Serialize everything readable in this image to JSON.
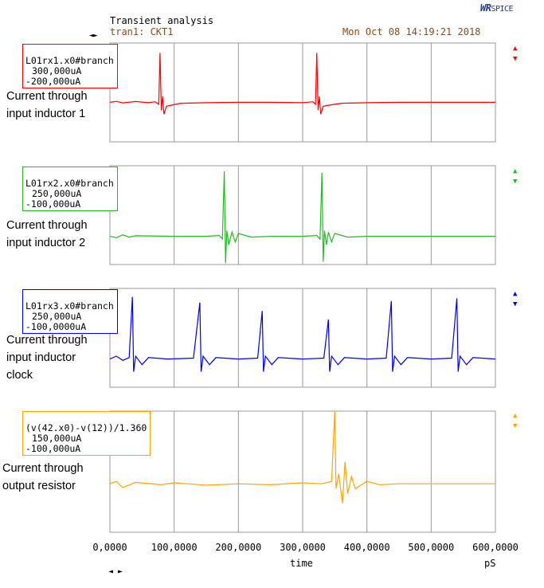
{
  "header": {
    "title": "Transient analysis",
    "subtitle": "tran1: CKT1",
    "datetime": "Mon Oct 08 14:19:21 2018",
    "logo_main": "WR",
    "logo_sub": "SPICE",
    "top_nav": "◄►",
    "bottom_nav": "◄ ►"
  },
  "colors": {
    "grid": "#9a9a9a",
    "panel1": "#ff0000",
    "panel2": "#22bb22",
    "panel3": "#0000ee",
    "panel4": "#ffa500"
  },
  "annotations": [
    "Current through input inductor 1",
    "Current through input inductor 2",
    "Current through input inductor clock",
    "Current through output resistor"
  ],
  "chart_data": {
    "type": "line",
    "xlabel": "time",
    "xunit": "pS",
    "xlim": [
      0,
      600
    ],
    "x_ticks": [
      "0,0000",
      "100,0000",
      "200,0000",
      "300,0000",
      "400,0000",
      "500,0000",
      "600,0000"
    ],
    "grid": true,
    "panels": [
      {
        "name": "L01rx1.x0#branch",
        "ymax_label": "300,000uA",
        "ymin_label": "-200,000uA",
        "ylim": [
          -200,
          300
        ],
        "color": "#ff0000",
        "pulses": [
          {
            "t": 78,
            "peak": 250,
            "dip": -60
          },
          {
            "t": 322,
            "peak": 250,
            "dip": -60
          }
        ],
        "baseline_uA": 0,
        "samples": [
          [
            0,
            0
          ],
          [
            10,
            5
          ],
          [
            20,
            -3
          ],
          [
            40,
            4
          ],
          [
            60,
            -2
          ],
          [
            70,
            3
          ],
          [
            76,
            -10
          ],
          [
            78,
            250
          ],
          [
            80,
            -40
          ],
          [
            82,
            30
          ],
          [
            84,
            -60
          ],
          [
            88,
            -20
          ],
          [
            95,
            -15
          ],
          [
            110,
            -5
          ],
          [
            150,
            -2
          ],
          [
            200,
            0
          ],
          [
            250,
            0
          ],
          [
            300,
            -2
          ],
          [
            316,
            3
          ],
          [
            320,
            -10
          ],
          [
            322,
            250
          ],
          [
            324,
            -40
          ],
          [
            326,
            30
          ],
          [
            328,
            -60
          ],
          [
            332,
            -20
          ],
          [
            340,
            -15
          ],
          [
            360,
            -5
          ],
          [
            400,
            -2
          ],
          [
            450,
            0
          ],
          [
            500,
            0
          ],
          [
            550,
            0
          ],
          [
            600,
            0
          ]
        ]
      },
      {
        "name": "L01rx2.x0#branch",
        "ymax_label": "250,000uA",
        "ymin_label": "-100,000uA",
        "ylim": [
          -100,
          250
        ],
        "color": "#22bb22",
        "pulses": [
          {
            "t": 178,
            "peak": 230,
            "dip": -95
          },
          {
            "t": 330,
            "peak": 225,
            "dip": -90
          }
        ],
        "baseline_uA": 0,
        "samples": [
          [
            0,
            0
          ],
          [
            10,
            -5
          ],
          [
            20,
            5
          ],
          [
            30,
            -3
          ],
          [
            40,
            2
          ],
          [
            100,
            0
          ],
          [
            150,
            0
          ],
          [
            170,
            3
          ],
          [
            175,
            -10
          ],
          [
            178,
            230
          ],
          [
            180,
            -95
          ],
          [
            182,
            20
          ],
          [
            185,
            -30
          ],
          [
            190,
            15
          ],
          [
            195,
            -20
          ],
          [
            200,
            10
          ],
          [
            220,
            -3
          ],
          [
            250,
            0
          ],
          [
            300,
            0
          ],
          [
            322,
            3
          ],
          [
            327,
            -10
          ],
          [
            330,
            225
          ],
          [
            332,
            -90
          ],
          [
            334,
            20
          ],
          [
            337,
            -30
          ],
          [
            340,
            15
          ],
          [
            345,
            -20
          ],
          [
            350,
            10
          ],
          [
            370,
            -3
          ],
          [
            400,
            0
          ],
          [
            500,
            0
          ],
          [
            600,
            0
          ]
        ]
      },
      {
        "name": "L01rx3.x0#branch",
        "ymax_label": "250,000uA",
        "ymin_label": "-100,0000uA",
        "ylim": [
          -100,
          250
        ],
        "color": "#0000ee",
        "pulses": [
          {
            "t": 35,
            "peak": 220,
            "dip": -45
          },
          {
            "t": 140,
            "peak": 200,
            "dip": -45
          },
          {
            "t": 237,
            "peak": 170,
            "dip": -45
          },
          {
            "t": 340,
            "peak": 140,
            "dip": -45
          },
          {
            "t": 438,
            "peak": 205,
            "dip": -45
          },
          {
            "t": 540,
            "peak": 215,
            "dip": -45
          }
        ],
        "baseline_uA": 0,
        "samples": [
          [
            0,
            0
          ],
          [
            10,
            10
          ],
          [
            20,
            -5
          ],
          [
            30,
            5
          ],
          [
            35,
            220
          ],
          [
            37,
            -45
          ],
          [
            40,
            10
          ],
          [
            50,
            -20
          ],
          [
            60,
            5
          ],
          [
            90,
            0
          ],
          [
            130,
            3
          ],
          [
            140,
            200
          ],
          [
            142,
            -45
          ],
          [
            145,
            10
          ],
          [
            155,
            -20
          ],
          [
            165,
            5
          ],
          [
            200,
            0
          ],
          [
            230,
            3
          ],
          [
            237,
            170
          ],
          [
            239,
            -45
          ],
          [
            242,
            10
          ],
          [
            252,
            -20
          ],
          [
            262,
            5
          ],
          [
            300,
            0
          ],
          [
            333,
            3
          ],
          [
            340,
            140
          ],
          [
            342,
            -45
          ],
          [
            345,
            10
          ],
          [
            355,
            -20
          ],
          [
            365,
            5
          ],
          [
            400,
            0
          ],
          [
            430,
            3
          ],
          [
            438,
            205
          ],
          [
            440,
            -45
          ],
          [
            443,
            10
          ],
          [
            453,
            -20
          ],
          [
            463,
            5
          ],
          [
            500,
            0
          ],
          [
            532,
            3
          ],
          [
            540,
            215
          ],
          [
            542,
            -45
          ],
          [
            545,
            10
          ],
          [
            555,
            -20
          ],
          [
            565,
            5
          ],
          [
            600,
            0
          ]
        ]
      },
      {
        "name": "(v(42.x0)-v(12))/1.360",
        "ymax_label": "150,000uA",
        "ymin_label": "-100,000uA",
        "ylim": [
          -100,
          150
        ],
        "color": "#ffa500",
        "pulses": [
          {
            "t": 350,
            "peak": 150,
            "dip": -40
          }
        ],
        "baseline_uA": 0,
        "samples": [
          [
            0,
            0
          ],
          [
            10,
            5
          ],
          [
            20,
            -8
          ],
          [
            40,
            3
          ],
          [
            80,
            -2
          ],
          [
            100,
            2
          ],
          [
            150,
            -3
          ],
          [
            200,
            0
          ],
          [
            250,
            -2
          ],
          [
            300,
            2
          ],
          [
            330,
            0
          ],
          [
            345,
            5
          ],
          [
            350,
            150
          ],
          [
            352,
            -10
          ],
          [
            356,
            20
          ],
          [
            362,
            -40
          ],
          [
            366,
            45
          ],
          [
            370,
            -20
          ],
          [
            376,
            15
          ],
          [
            382,
            -10
          ],
          [
            400,
            5
          ],
          [
            420,
            -2
          ],
          [
            450,
            0
          ],
          [
            500,
            0
          ],
          [
            600,
            0
          ]
        ]
      }
    ]
  }
}
